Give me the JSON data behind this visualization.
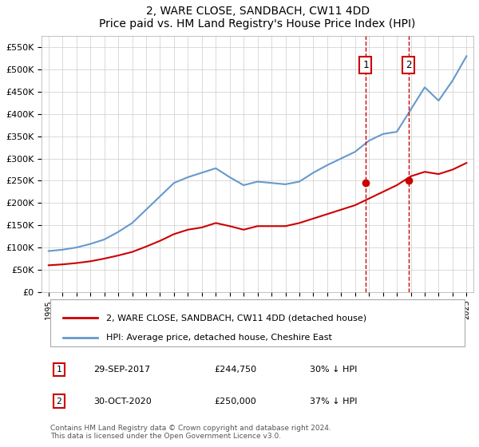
{
  "title": "2, WARE CLOSE, SANDBACH, CW11 4DD",
  "subtitle": "Price paid vs. HM Land Registry's House Price Index (HPI)",
  "footer": "Contains HM Land Registry data © Crown copyright and database right 2024.\nThis data is licensed under the Open Government Licence v3.0.",
  "legend_line1": "2, WARE CLOSE, SANDBACH, CW11 4DD (detached house)",
  "legend_line2": "HPI: Average price, detached house, Cheshire East",
  "annotation1_date": "29-SEP-2017",
  "annotation1_price": "£244,750",
  "annotation1_hpi": "30% ↓ HPI",
  "annotation2_date": "30-OCT-2020",
  "annotation2_price": "£250,000",
  "annotation2_hpi": "37% ↓ HPI",
  "vline1_x": 2017.75,
  "vline2_x": 2020.83,
  "red_color": "#cc0000",
  "blue_color": "#6699cc",
  "background_color": "#ffffff",
  "grid_color": "#cccccc",
  "ylim": [
    0,
    575000
  ],
  "xlim": [
    1994.5,
    2025.5
  ],
  "hpi_years": [
    1995,
    1996,
    1997,
    1998,
    1999,
    2000,
    2001,
    2002,
    2003,
    2004,
    2005,
    2006,
    2007,
    2008,
    2009,
    2010,
    2011,
    2012,
    2013,
    2014,
    2015,
    2016,
    2017,
    2018,
    2019,
    2020,
    2021,
    2022,
    2023,
    2024,
    2025
  ],
  "hpi_values": [
    92000,
    95000,
    100000,
    108000,
    118000,
    135000,
    155000,
    185000,
    215000,
    245000,
    258000,
    268000,
    278000,
    258000,
    240000,
    248000,
    245000,
    242000,
    248000,
    268000,
    285000,
    300000,
    315000,
    340000,
    355000,
    360000,
    410000,
    460000,
    430000,
    475000,
    530000
  ],
  "price_years": [
    1995,
    1996,
    1997,
    1998,
    1999,
    2000,
    2001,
    2002,
    2003,
    2004,
    2005,
    2006,
    2007,
    2008,
    2009,
    2010,
    2011,
    2012,
    2013,
    2014,
    2015,
    2016,
    2017,
    2018,
    2019,
    2020,
    2021,
    2022,
    2023,
    2024,
    2025
  ],
  "price_values": [
    60000,
    62000,
    65000,
    69000,
    75000,
    82000,
    90000,
    102000,
    115000,
    130000,
    140000,
    145000,
    155000,
    148000,
    140000,
    148000,
    148000,
    148000,
    155000,
    165000,
    175000,
    185000,
    195000,
    210000,
    225000,
    240000,
    260000,
    270000,
    265000,
    275000,
    290000
  ],
  "sale1_x": 2017.75,
  "sale1_y": 244750,
  "sale2_x": 2020.83,
  "sale2_y": 250000
}
